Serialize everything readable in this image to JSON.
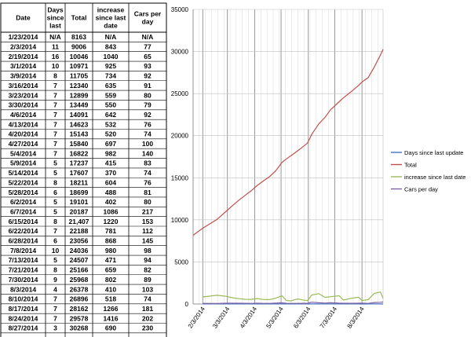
{
  "table": {
    "headers": [
      "Date",
      "Days since last",
      "Total",
      "increase since last date",
      "Cars per day"
    ],
    "rows": [
      [
        "1/23/2014",
        "N/A",
        "8163",
        "N/A",
        "N/A"
      ],
      [
        "2/3/2014",
        "11",
        "9006",
        "843",
        "77"
      ],
      [
        "2/19/2014",
        "16",
        "10046",
        "1040",
        "65"
      ],
      [
        "3/1/2014",
        "10",
        "10971",
        "925",
        "93"
      ],
      [
        "3/9/2014",
        "8",
        "11705",
        "734",
        "92"
      ],
      [
        "3/16/2014",
        "7",
        "12340",
        "635",
        "91"
      ],
      [
        "3/23/2014",
        "7",
        "12899",
        "559",
        "80"
      ],
      [
        "3/30/2014",
        "7",
        "13449",
        "550",
        "79"
      ],
      [
        "4/6/2014",
        "7",
        "14091",
        "642",
        "92"
      ],
      [
        "4/13/2014",
        "7",
        "14623",
        "532",
        "76"
      ],
      [
        "4/20/2014",
        "7",
        "15143",
        "520",
        "74"
      ],
      [
        "4/27/2014",
        "7",
        "15840",
        "697",
        "100"
      ],
      [
        "5/4/2014",
        "7",
        "16822",
        "982",
        "140"
      ],
      [
        "5/9/2014",
        "5",
        "17237",
        "415",
        "83"
      ],
      [
        "5/14/2014",
        "5",
        "17607",
        "370",
        "74"
      ],
      [
        "5/22/2014",
        "8",
        "18211",
        "604",
        "76"
      ],
      [
        "5/28/2014",
        "6",
        "18699",
        "488",
        "81"
      ],
      [
        "6/2/2014",
        "5",
        "19101",
        "402",
        "80"
      ],
      [
        "6/7/2014",
        "5",
        "20187",
        "1086",
        "217"
      ],
      [
        "6/15/2014",
        "8",
        "21,407",
        "1220",
        "153"
      ],
      [
        "6/22/2014",
        "7",
        "22188",
        "781",
        "112"
      ],
      [
        "6/28/2014",
        "6",
        "23056",
        "868",
        "145"
      ],
      [
        "7/8/2014",
        "10",
        "24036",
        "980",
        "98"
      ],
      [
        "7/13/2014",
        "5",
        "24507",
        "471",
        "94"
      ],
      [
        "7/21/2014",
        "8",
        "25166",
        "659",
        "82"
      ],
      [
        "7/30/2014",
        "9",
        "25968",
        "802",
        "89"
      ],
      [
        "8/3/2014",
        "4",
        "26378",
        "410",
        "103"
      ],
      [
        "8/10/2014",
        "7",
        "26896",
        "518",
        "74"
      ],
      [
        "8/17/2014",
        "7",
        "28162",
        "1266",
        "181"
      ],
      [
        "8/24/2014",
        "7",
        "29578",
        "1416",
        "202"
      ],
      [
        "8/27/2014",
        "3",
        "30268",
        "690",
        "230"
      ]
    ],
    "empty_rows": 2
  },
  "chart_data": {
    "type": "line",
    "x_dates": [
      "1/23/2014",
      "2/3/2014",
      "2/19/2014",
      "3/1/2014",
      "3/9/2014",
      "3/16/2014",
      "3/23/2014",
      "3/30/2014",
      "4/6/2014",
      "4/13/2014",
      "4/20/2014",
      "4/27/2014",
      "5/4/2014",
      "5/9/2014",
      "5/14/2014",
      "5/22/2014",
      "5/28/2014",
      "6/2/2014",
      "6/7/2014",
      "6/15/2014",
      "6/22/2014",
      "6/28/2014",
      "7/8/2014",
      "7/13/2014",
      "7/21/2014",
      "7/30/2014",
      "8/3/2014",
      "8/10/2014",
      "8/17/2014",
      "8/24/2014",
      "8/27/2014"
    ],
    "x_tick_labels": [
      "2/3/2014",
      "3/3/2014",
      "4/3/2014",
      "5/3/2014",
      "6/3/2014",
      "7/3/2014",
      "8/3/2014"
    ],
    "ylim": [
      0,
      35000
    ],
    "y_ticks": [
      0,
      5000,
      10000,
      15000,
      20000,
      25000,
      30000,
      35000
    ],
    "grid": true,
    "legend_position": "right",
    "series": [
      {
        "name": "Days since last update",
        "color": "#4472c4",
        "values": [
          null,
          11,
          16,
          10,
          8,
          7,
          7,
          7,
          7,
          7,
          7,
          7,
          7,
          5,
          5,
          8,
          6,
          5,
          5,
          8,
          7,
          6,
          10,
          5,
          8,
          9,
          4,
          7,
          7,
          7,
          3
        ]
      },
      {
        "name": "Total",
        "color": "#c0504d",
        "values": [
          8163,
          9006,
          10046,
          10971,
          11705,
          12340,
          12899,
          13449,
          14091,
          14623,
          15143,
          15840,
          16822,
          17237,
          17607,
          18211,
          18699,
          19101,
          20187,
          21407,
          22188,
          23056,
          24036,
          24507,
          25166,
          25968,
          26378,
          26896,
          28162,
          29578,
          30268
        ]
      },
      {
        "name": "increase since last date",
        "color": "#9bbb59",
        "values": [
          null,
          843,
          1040,
          925,
          734,
          635,
          559,
          550,
          642,
          532,
          520,
          697,
          982,
          415,
          370,
          604,
          488,
          402,
          1086,
          1220,
          781,
          868,
          980,
          471,
          659,
          802,
          410,
          518,
          1266,
          1416,
          690
        ]
      },
      {
        "name": "Cars per day",
        "color": "#8064a2",
        "values": [
          null,
          77,
          65,
          93,
          92,
          91,
          80,
          79,
          92,
          76,
          74,
          100,
          140,
          83,
          74,
          76,
          81,
          80,
          217,
          153,
          112,
          145,
          98,
          94,
          82,
          89,
          103,
          74,
          181,
          202,
          230
        ]
      }
    ]
  }
}
